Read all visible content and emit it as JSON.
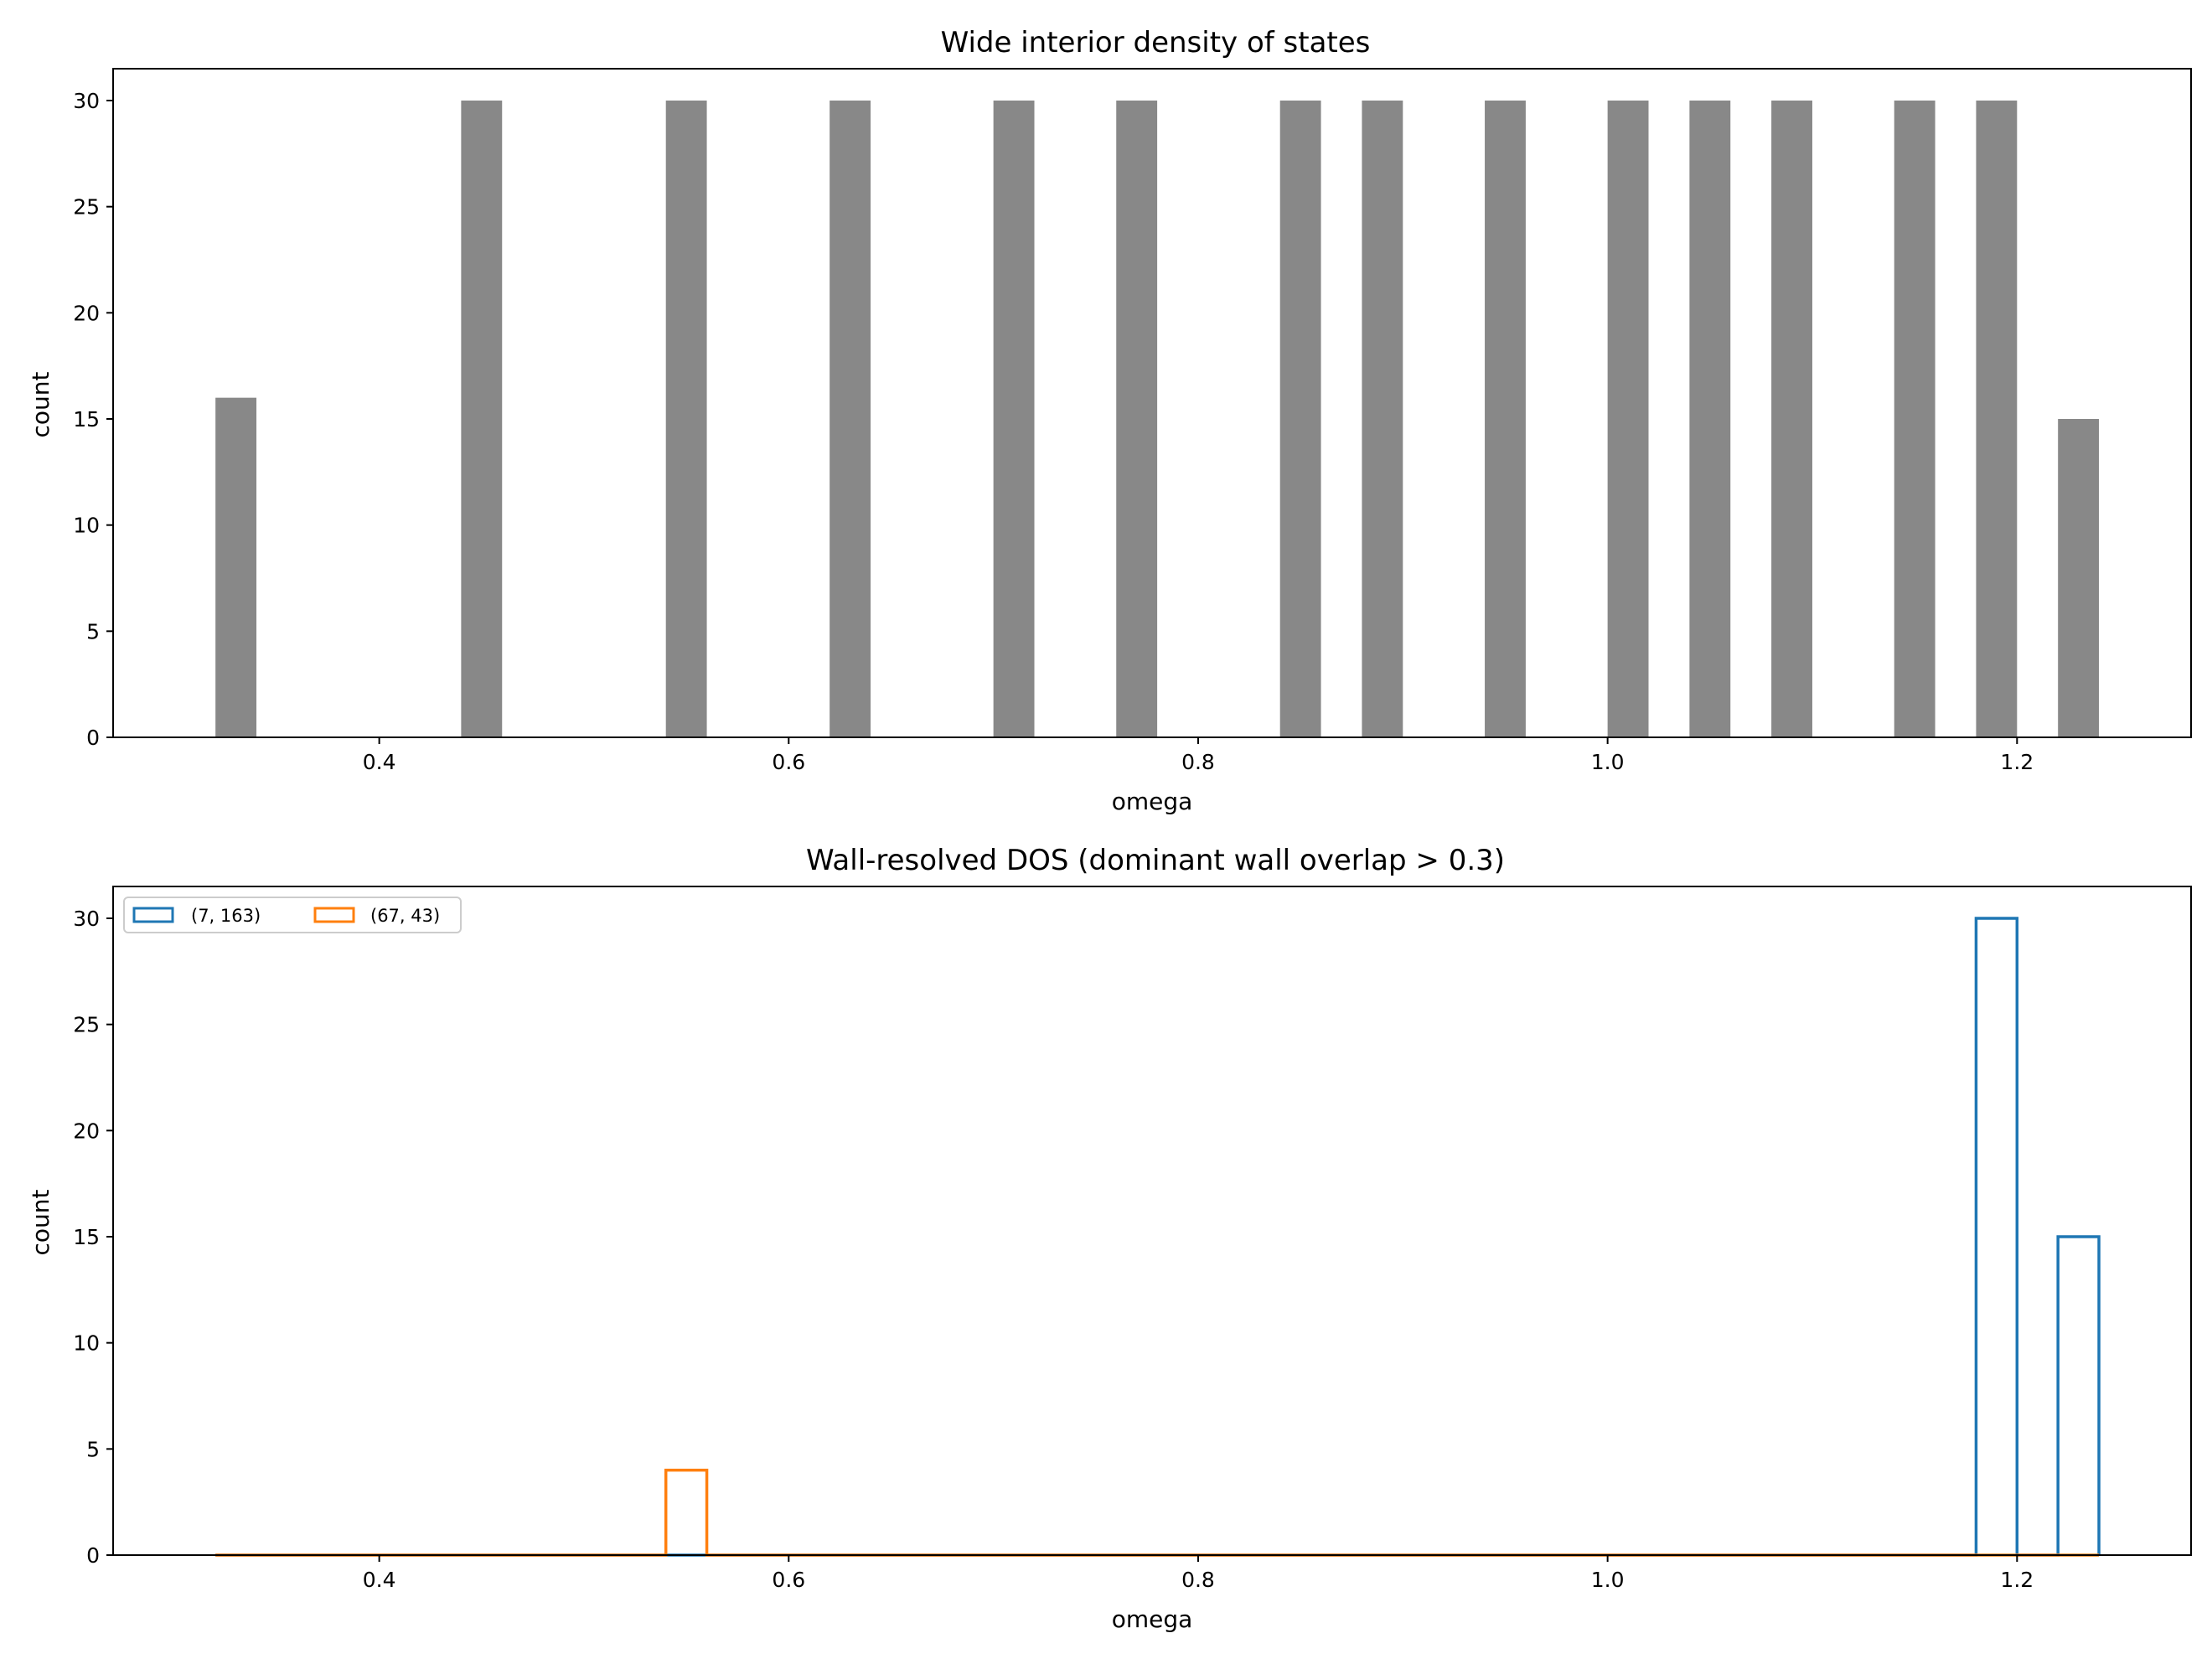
{
  "chart_data": [
    {
      "type": "bar",
      "title": "Wide interior density of states",
      "xlabel": "omega",
      "ylabel": "count",
      "xlim": [
        0.27,
        1.285
      ],
      "ylim": [
        0,
        31.5
      ],
      "xticks": [
        "0.4",
        "0.6",
        "0.8",
        "1.0",
        "1.2"
      ],
      "xtick_values": [
        0.4,
        0.6,
        0.8,
        1.0,
        1.2
      ],
      "yticks": [
        "0",
        "5",
        "10",
        "15",
        "20",
        "25",
        "30"
      ],
      "ytick_values": [
        0,
        5,
        10,
        15,
        20,
        25,
        30
      ],
      "bin_width": 0.02,
      "color": "#888888",
      "bins": [
        {
          "x": 0.32,
          "value": 16
        },
        {
          "x": 0.44,
          "value": 30
        },
        {
          "x": 0.54,
          "value": 30
        },
        {
          "x": 0.62,
          "value": 30
        },
        {
          "x": 0.7,
          "value": 30
        },
        {
          "x": 0.76,
          "value": 30
        },
        {
          "x": 0.84,
          "value": 30
        },
        {
          "x": 0.88,
          "value": 30
        },
        {
          "x": 0.94,
          "value": 30
        },
        {
          "x": 1.0,
          "value": 30
        },
        {
          "x": 1.04,
          "value": 30
        },
        {
          "x": 1.08,
          "value": 30
        },
        {
          "x": 1.14,
          "value": 30
        },
        {
          "x": 1.18,
          "value": 30
        },
        {
          "x": 1.22,
          "value": 15
        }
      ]
    },
    {
      "type": "bar",
      "style": "step-histogram",
      "title": "Wall-resolved DOS (dominant wall overlap > 0.3)",
      "xlabel": "omega",
      "ylabel": "count",
      "xlim": [
        0.27,
        1.285
      ],
      "ylim": [
        0,
        31.5
      ],
      "xticks": [
        "0.4",
        "0.6",
        "0.8",
        "1.0",
        "1.2"
      ],
      "xtick_values": [
        0.4,
        0.6,
        0.8,
        1.0,
        1.2
      ],
      "yticks": [
        "0",
        "5",
        "10",
        "15",
        "20",
        "25",
        "30"
      ],
      "ytick_values": [
        0,
        5,
        10,
        15,
        20,
        25,
        30
      ],
      "bin_width": 0.02,
      "range": [
        0.32,
        1.24
      ],
      "legend": "top-left",
      "series": [
        {
          "name": "(7, 163)",
          "color": "#1f77b4",
          "bins": [
            {
              "x": 1.18,
              "value": 30
            },
            {
              "x": 1.22,
              "value": 15
            }
          ]
        },
        {
          "name": "(67, 43)",
          "color": "#ff7f0e",
          "bins": [
            {
              "x": 0.54,
              "value": 4
            }
          ]
        }
      ]
    }
  ]
}
